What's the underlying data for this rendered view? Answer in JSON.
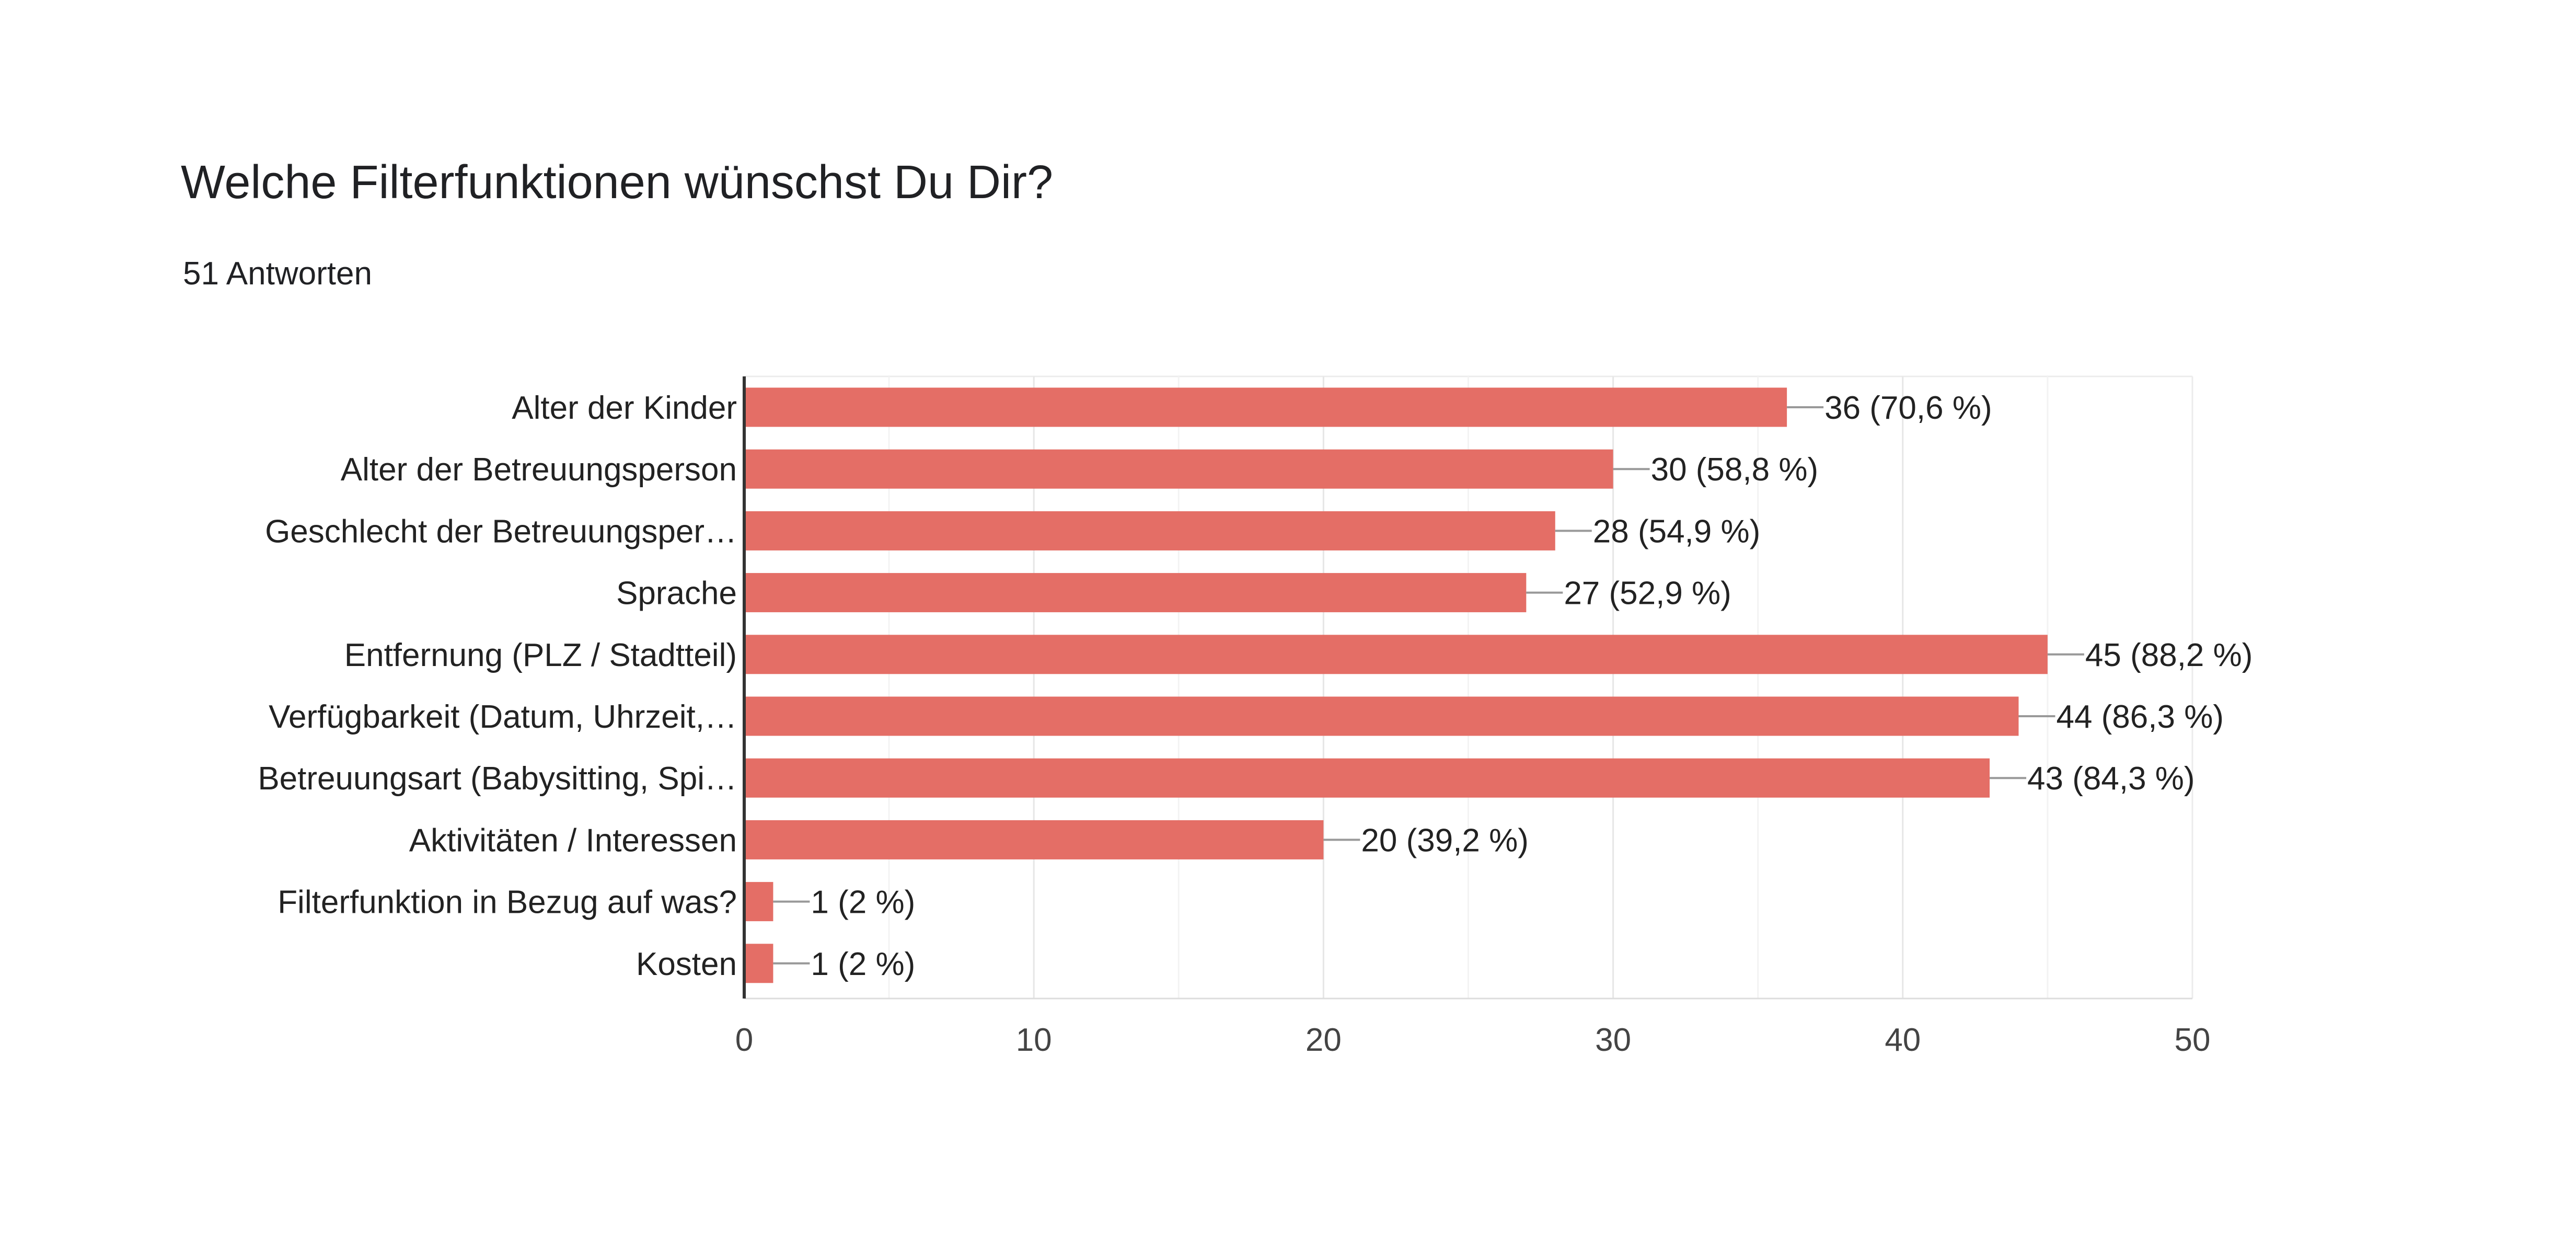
{
  "title": "Welche Filterfunktionen wünschst Du Dir?",
  "subtitle": "51 Antworten",
  "chart_data": {
    "type": "bar",
    "orientation": "horizontal",
    "categories": [
      "Alter der Kinder",
      "Alter der Betreuungsperson",
      "Geschlecht der Betreuungsper…",
      "Sprache",
      "Entfernung (PLZ / Stadtteil)",
      "Verfügbarkeit (Datum, Uhrzeit,…",
      "Betreuungsart (Babysitting, Spi…",
      "Aktivitäten / Interessen",
      "Filterfunktion in Bezug auf was?",
      "Kosten"
    ],
    "values": [
      36,
      30,
      28,
      27,
      45,
      44,
      43,
      20,
      1,
      1
    ],
    "data_labels": [
      "36 (70,6 %)",
      "30 (58,8 %)",
      "28 (54,9 %)",
      "27 (52,9 %)",
      "45 (88,2 %)",
      "44 (86,3 %)",
      "43 (84,3 %)",
      "20 (39,2 %)",
      "1 (2 %)",
      "1 (2 %)"
    ],
    "xlim": [
      0,
      50
    ],
    "xticks": [
      "0",
      "10",
      "20",
      "30",
      "40",
      "50"
    ],
    "grid": true,
    "bar_color": "#e46e66",
    "legend": false
  }
}
